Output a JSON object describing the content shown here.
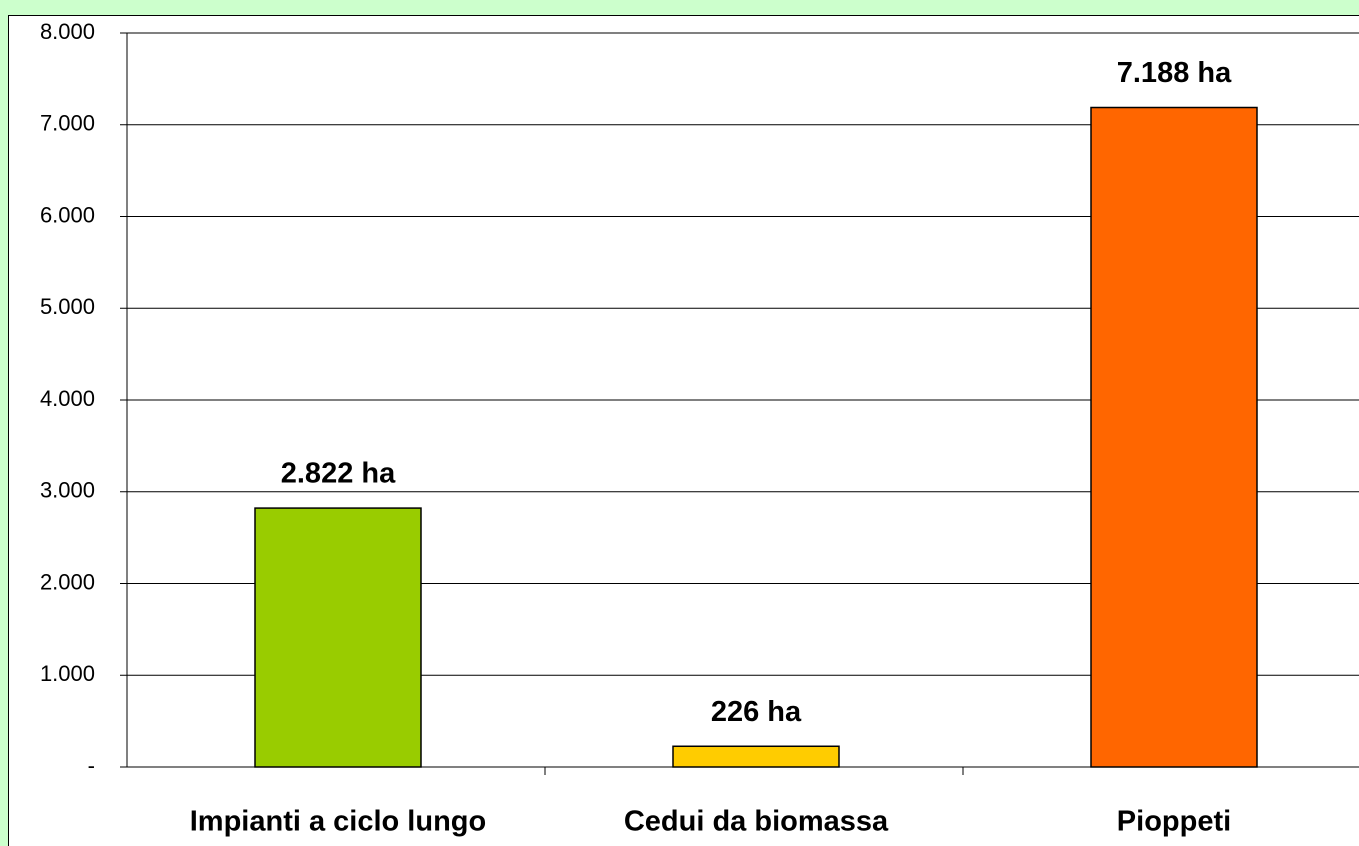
{
  "chart_data": {
    "type": "bar",
    "categories": [
      "Impianti a ciclo lungo",
      "Cedui da biomassa",
      "Pioppeti"
    ],
    "values": [
      2822,
      226,
      7188
    ],
    "value_labels": [
      "2.822 ha",
      "226 ha",
      "7.188 ha"
    ],
    "colors": [
      "#99cc00",
      "#ffcc00",
      "#ff6600"
    ],
    "ylim": [
      0,
      8000
    ],
    "yticks": [
      {
        "value": 0,
        "label": "-"
      },
      {
        "value": 1000,
        "label": "1.000"
      },
      {
        "value": 2000,
        "label": "2.000"
      },
      {
        "value": 3000,
        "label": "3.000"
      },
      {
        "value": 4000,
        "label": "4.000"
      },
      {
        "value": 5000,
        "label": "5.000"
      },
      {
        "value": 6000,
        "label": "6.000"
      },
      {
        "value": 7000,
        "label": "7.000"
      },
      {
        "value": 8000,
        "label": "8.000"
      }
    ],
    "grid": true
  }
}
